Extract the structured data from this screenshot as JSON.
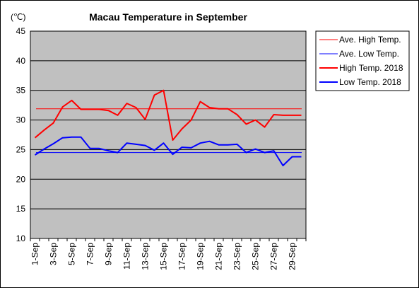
{
  "chart_data": {
    "type": "line",
    "title": "Macau Temperature in September",
    "unit_label": "(℃)",
    "ylim": [
      10,
      45
    ],
    "y_ticks": [
      "10",
      "15",
      "20",
      "25",
      "30",
      "35",
      "40",
      "45"
    ],
    "x_tick_labels": [
      "1-Sep",
      "3-Sep",
      "5-Sep",
      "7-Sep",
      "9-Sep",
      "11-Sep",
      "13-Sep",
      "15-Sep",
      "17-Sep",
      "19-Sep",
      "21-Sep",
      "23-Sep",
      "25-Sep",
      "27-Sep",
      "29-Sep"
    ],
    "days": [
      1,
      2,
      3,
      4,
      5,
      6,
      7,
      8,
      9,
      10,
      11,
      12,
      13,
      14,
      15,
      16,
      17,
      18,
      19,
      20,
      21,
      22,
      23,
      24,
      25,
      26,
      27,
      28,
      29,
      30
    ],
    "grid": true,
    "background": "#c0c0c0",
    "legend_position": "right",
    "series": [
      {
        "name": "Ave. High Temp.",
        "color": "#ff0000",
        "width": 1,
        "values": [
          31.9,
          31.9,
          31.9,
          31.9,
          31.9,
          31.9,
          31.9,
          31.9,
          31.9,
          31.9,
          31.9,
          31.9,
          31.9,
          31.9,
          31.9,
          31.9,
          31.9,
          31.9,
          31.9,
          31.9,
          31.9,
          31.9,
          31.9,
          31.9,
          31.9,
          31.9,
          31.9,
          31.9,
          31.9,
          31.9
        ]
      },
      {
        "name": "Ave. Low Temp.",
        "color": "#0000ff",
        "width": 1,
        "values": [
          24.5,
          24.5,
          24.5,
          24.5,
          24.5,
          24.5,
          24.5,
          24.5,
          24.5,
          24.5,
          24.5,
          24.5,
          24.5,
          24.5,
          24.5,
          24.5,
          24.5,
          24.5,
          24.5,
          24.5,
          24.5,
          24.5,
          24.5,
          24.5,
          24.5,
          24.5,
          24.5,
          24.5,
          24.5,
          24.5
        ]
      },
      {
        "name": "High Temp. 2018",
        "color": "#ff0000",
        "width": 2,
        "values": [
          27.0,
          28.3,
          29.5,
          32.2,
          33.3,
          31.8,
          31.8,
          31.8,
          31.6,
          30.8,
          32.8,
          32.1,
          30.1,
          34.2,
          35.0,
          26.6,
          28.5,
          30.0,
          33.1,
          32.1,
          31.9,
          31.9,
          30.9,
          29.3,
          30.0,
          28.8,
          30.9,
          30.8,
          30.8,
          30.8
        ]
      },
      {
        "name": "Low Temp. 2018",
        "color": "#0000ff",
        "width": 2,
        "values": [
          24.1,
          25.1,
          26.0,
          27.0,
          27.1,
          27.1,
          25.2,
          25.2,
          24.8,
          24.5,
          26.1,
          25.9,
          25.7,
          24.9,
          26.1,
          24.2,
          25.4,
          25.3,
          26.1,
          26.4,
          25.8,
          25.8,
          25.9,
          24.5,
          25.1,
          24.5,
          24.8,
          22.3,
          23.8,
          23.8
        ]
      }
    ]
  }
}
